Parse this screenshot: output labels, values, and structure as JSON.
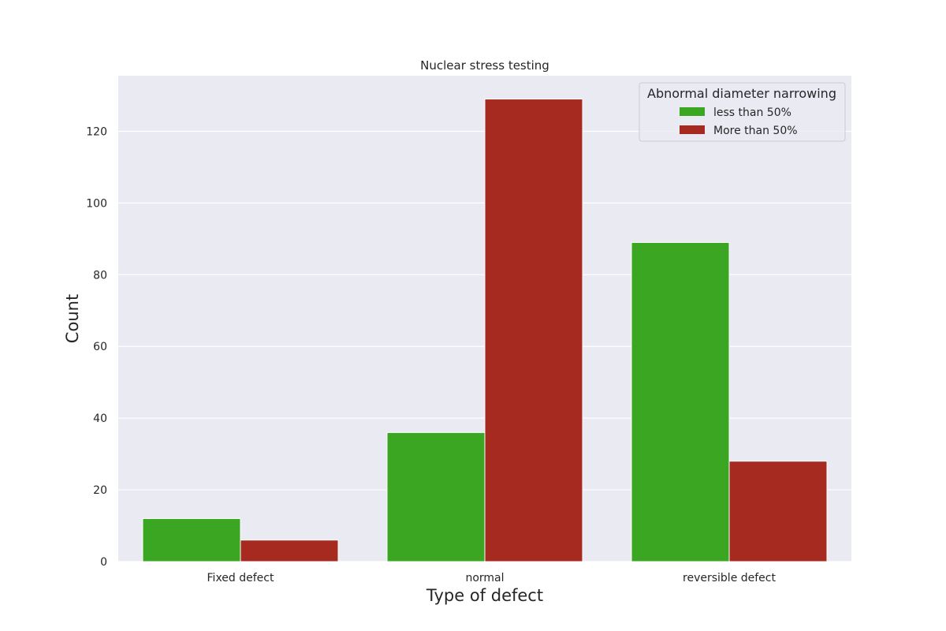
{
  "chart_data": {
    "type": "bar",
    "title": "Nuclear stress testing",
    "xlabel": "Type of defect",
    "ylabel": "Count",
    "categories": [
      "Fixed defect",
      "normal",
      "reversible defect"
    ],
    "series": [
      {
        "name": "less than 50%",
        "values": [
          12,
          36,
          89
        ],
        "color": "#3aa621"
      },
      {
        "name": "More than 50%",
        "values": [
          6,
          129,
          28
        ],
        "color": "#a72a21"
      }
    ],
    "yticks": [
      0,
      20,
      40,
      60,
      80,
      100,
      120
    ],
    "ylim": [
      0,
      135.5
    ],
    "grid": true,
    "legend": {
      "title": "Abnormal diameter narrowing",
      "placement": "top-right"
    },
    "colors": {
      "plot_background": "#eaeaf2",
      "gridline": "#ffffff",
      "text": "#262626"
    }
  }
}
